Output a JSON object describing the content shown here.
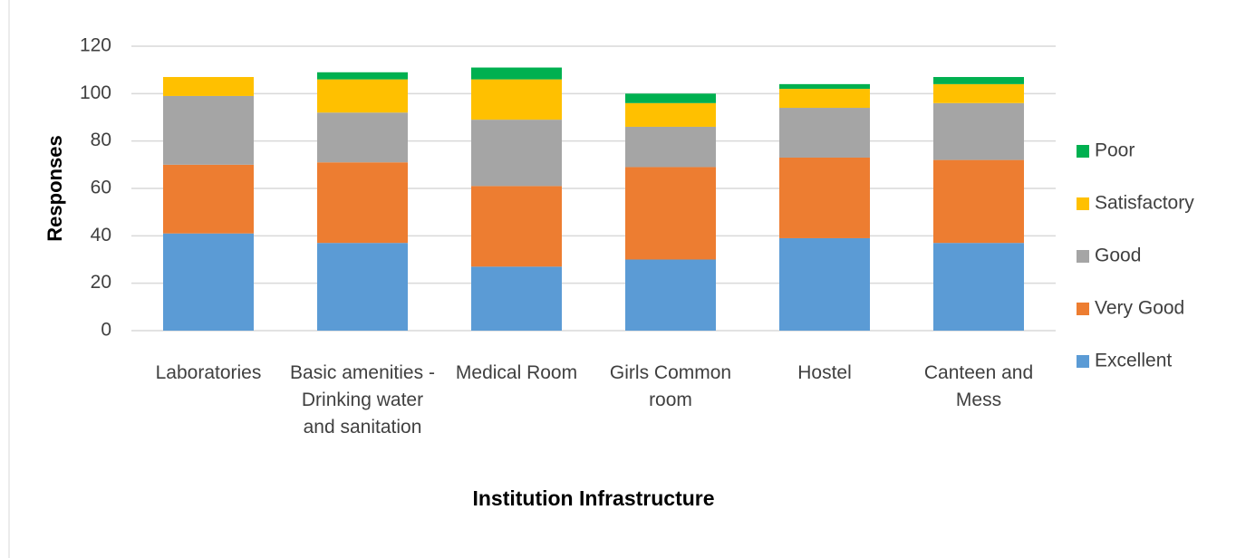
{
  "chart_data": {
    "type": "stacked_bar",
    "x_label": "Institution Infrastructure",
    "y_label": "Responses",
    "categories": [
      "Laboratories",
      "Basic amenities - Drinking water and sanitation",
      "Medical Room",
      "Girls Common room",
      "Hostel",
      "Canteen and Mess"
    ],
    "series": [
      {
        "name": "Excellent",
        "color": "#5b9bd5",
        "values": [
          41,
          37,
          27,
          30,
          39,
          37
        ]
      },
      {
        "name": "Very Good",
        "color": "#ed7d31",
        "values": [
          29,
          34,
          34,
          39,
          34,
          35
        ]
      },
      {
        "name": "Good",
        "color": "#a5a5a5",
        "values": [
          29,
          21,
          28,
          17,
          21,
          24
        ]
      },
      {
        "name": "Satisfactory",
        "color": "#ffc000",
        "values": [
          8,
          14,
          17,
          10,
          8,
          8
        ]
      },
      {
        "name": "Poor",
        "color": "#00b050",
        "values": [
          0,
          3,
          5,
          4,
          2,
          3
        ]
      }
    ],
    "ylim": [
      0,
      120
    ],
    "yticks": [
      0,
      20,
      40,
      60,
      80,
      100,
      120
    ],
    "grid": true,
    "legend": "right"
  }
}
